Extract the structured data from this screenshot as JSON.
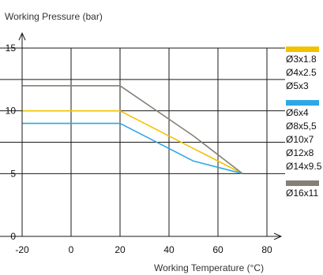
{
  "chart_data": {
    "type": "line",
    "xlabel": "Working Temperature (°C)",
    "ylabel": "Working Pressure (bar)",
    "xlim": [
      -20,
      80
    ],
    "ylim": [
      0,
      15
    ],
    "x_ticks": [
      -20,
      0,
      20,
      40,
      60,
      80
    ],
    "y_ticks": [
      0,
      5,
      10,
      15
    ],
    "grid_x": [
      -20,
      0,
      20,
      40,
      60,
      80
    ],
    "grid_y": [
      5,
      7.5,
      10,
      12.5,
      15
    ],
    "grid": true,
    "legend_position": "right",
    "series": [
      {
        "color": "#f2c200",
        "labels": [
          "Ø3x1.8",
          "Ø4x2.5",
          "Ø5x3"
        ],
        "points": [
          [
            -20,
            10
          ],
          [
            20,
            10
          ],
          [
            70,
            5
          ]
        ]
      },
      {
        "color": "#2ea7e6",
        "labels": [
          "Ø6x4",
          "Ø8x5,5",
          "Ø10x7",
          "Ø12x8",
          "Ø14x9.5"
        ],
        "points": [
          [
            -20,
            9
          ],
          [
            20,
            9
          ],
          [
            50,
            6
          ],
          [
            70,
            5
          ]
        ]
      },
      {
        "color": "#867f76",
        "labels": [
          "Ø16x11"
        ],
        "points": [
          [
            -20,
            12
          ],
          [
            20,
            12
          ],
          [
            50,
            8
          ],
          [
            70,
            5
          ]
        ]
      }
    ]
  }
}
